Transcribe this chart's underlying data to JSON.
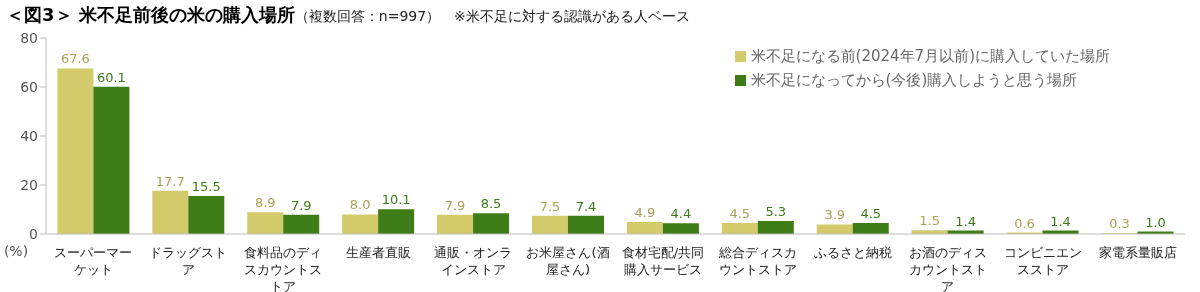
{
  "chart_data": {
    "type": "bar",
    "title": "＜図3＞ 米不足前後の米の購入場所",
    "subtitle": "（複数回答：n=997）　※米不足に対する認識がある人ベース",
    "ylabel": "(%)",
    "categories": [
      "スーパーマーケット",
      "ドラッグストア",
      "食料品のディスカウントストア",
      "生産者直販",
      "通販・オンラインストア",
      "お米屋さん(酒屋さん)",
      "食材宅配/共同購入サービス",
      "総合ディスカウントストア",
      "ふるさと納税",
      "お酒のディスカウントストア",
      "コンビニエンスストア",
      "家電系量販店"
    ],
    "series": [
      {
        "name": "米不足になる前(2024年7月以前)に購入していた場所",
        "color": "#d3cb6b",
        "values": [
          67.6,
          17.7,
          8.9,
          8.0,
          7.9,
          7.5,
          4.9,
          4.5,
          3.9,
          1.5,
          0.6,
          0.3
        ],
        "value_labels": [
          "67.6",
          "17.7",
          "8.9",
          "8.0",
          "7.9",
          "7.5",
          "4.9",
          "4.5",
          "3.9",
          "1.5",
          "0.6",
          "0.3"
        ]
      },
      {
        "name": "米不足になってから(今後)購入しようと思う場所",
        "color": "#3d7c16",
        "values": [
          60.1,
          15.5,
          7.9,
          10.1,
          8.5,
          7.4,
          4.4,
          5.3,
          4.5,
          1.4,
          1.4,
          1.0
        ],
        "value_labels": [
          "60.1",
          "15.5",
          "7.9",
          "10.1",
          "8.5",
          "7.4",
          "4.4",
          "5.3",
          "4.5",
          "1.4",
          "1.4",
          "1.0"
        ]
      }
    ],
    "ylim": [
      0,
      80
    ],
    "yticks": [
      0,
      20,
      40,
      60,
      80
    ],
    "legend": "top right"
  }
}
